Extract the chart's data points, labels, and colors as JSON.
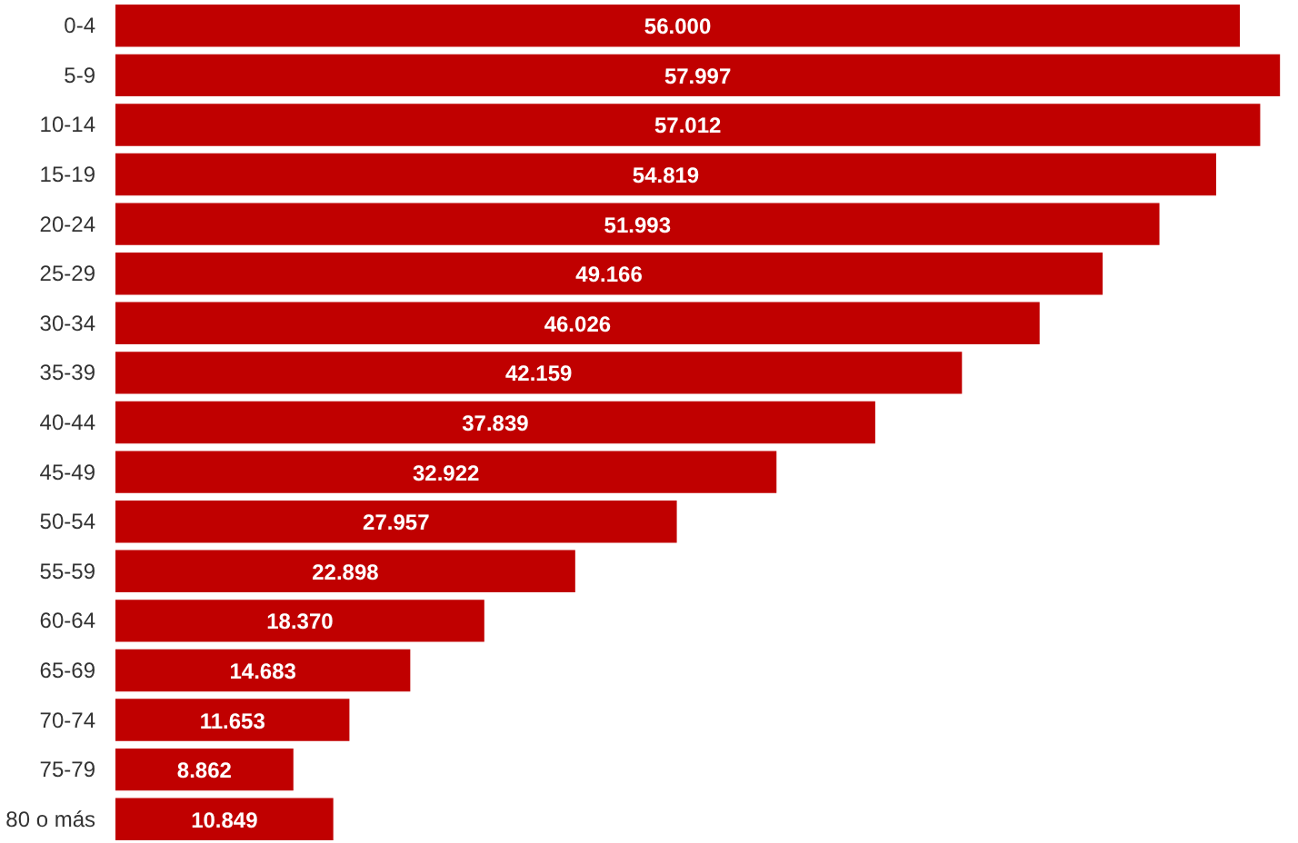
{
  "chart_data": {
    "type": "bar",
    "orientation": "horizontal",
    "categories": [
      "0-4",
      "5-9",
      "10-14",
      "15-19",
      "20-24",
      "25-29",
      "30-34",
      "35-39",
      "40-44",
      "45-49",
      "50-54",
      "55-59",
      "60-64",
      "65-69",
      "70-74",
      "75-79",
      "80 o más"
    ],
    "values": [
      56000,
      57997,
      57012,
      54819,
      51993,
      49166,
      46026,
      42159,
      37839,
      32922,
      27957,
      22898,
      18370,
      14683,
      11653,
      8862,
      10849
    ],
    "value_labels": [
      "56.000",
      "57.997",
      "57.012",
      "54.819",
      "51.993",
      "49.166",
      "46.026",
      "42.159",
      "37.839",
      "32.922",
      "27.957",
      "22.898",
      "18.370",
      "14.683",
      "11.653",
      "8.862",
      "10.849"
    ],
    "color": "#c00000"
  }
}
